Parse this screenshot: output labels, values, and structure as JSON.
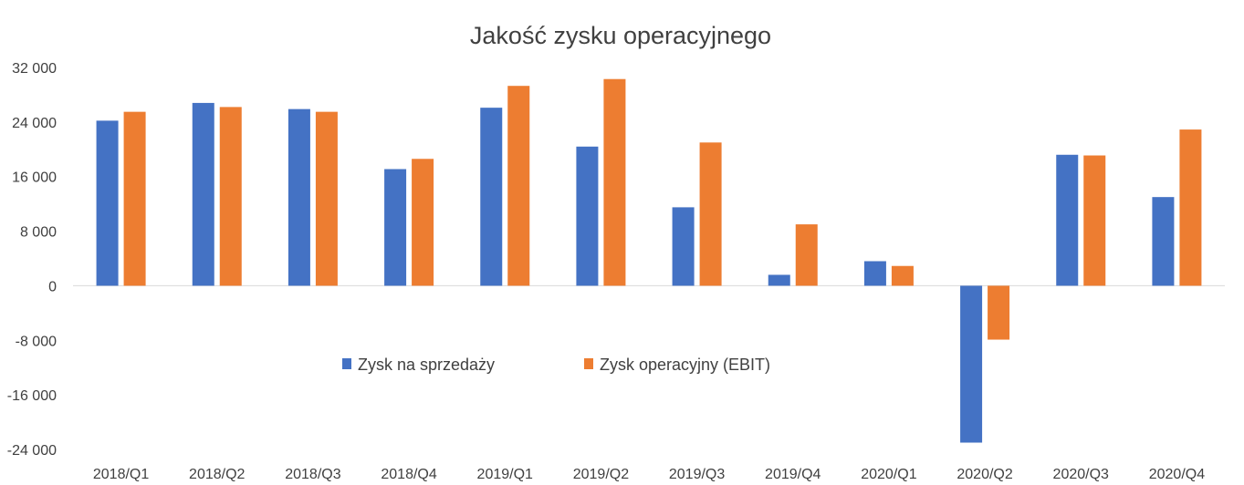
{
  "chart_data": {
    "type": "bar",
    "title": "Jakość zysku operacyjnego",
    "xlabel": "",
    "ylabel": "",
    "ylim": [
      -24000,
      32000
    ],
    "yticks": [
      {
        "value": 32000,
        "label": "32 000"
      },
      {
        "value": 24000,
        "label": "24 000"
      },
      {
        "value": 16000,
        "label": "16 000"
      },
      {
        "value": 8000,
        "label": "8 000"
      },
      {
        "value": 0,
        "label": "0"
      },
      {
        "value": -8000,
        "label": "-8 000"
      },
      {
        "value": -16000,
        "label": "-16 000"
      },
      {
        "value": -24000,
        "label": "-24 000"
      }
    ],
    "categories": [
      "2018/Q1",
      "2018/Q2",
      "2018/Q3",
      "2018/Q4",
      "2019/Q1",
      "2019/Q2",
      "2019/Q3",
      "2019/Q4",
      "2020/Q1",
      "2020/Q2",
      "2020/Q3",
      "2020/Q4"
    ],
    "series": [
      {
        "name": "Zysk na sprzedaży",
        "color": "#4472C4",
        "values": [
          24200,
          26800,
          25900,
          17100,
          26100,
          20400,
          11500,
          1600,
          3600,
          -23000,
          19200,
          13000
        ]
      },
      {
        "name": "Zysk operacyjny (EBIT)",
        "color": "#ED7D31",
        "values": [
          25500,
          26200,
          25500,
          18600,
          29300,
          30300,
          21000,
          9000,
          2900,
          -7900,
          19100,
          22900
        ]
      }
    ],
    "grid": false,
    "legend": "center"
  }
}
